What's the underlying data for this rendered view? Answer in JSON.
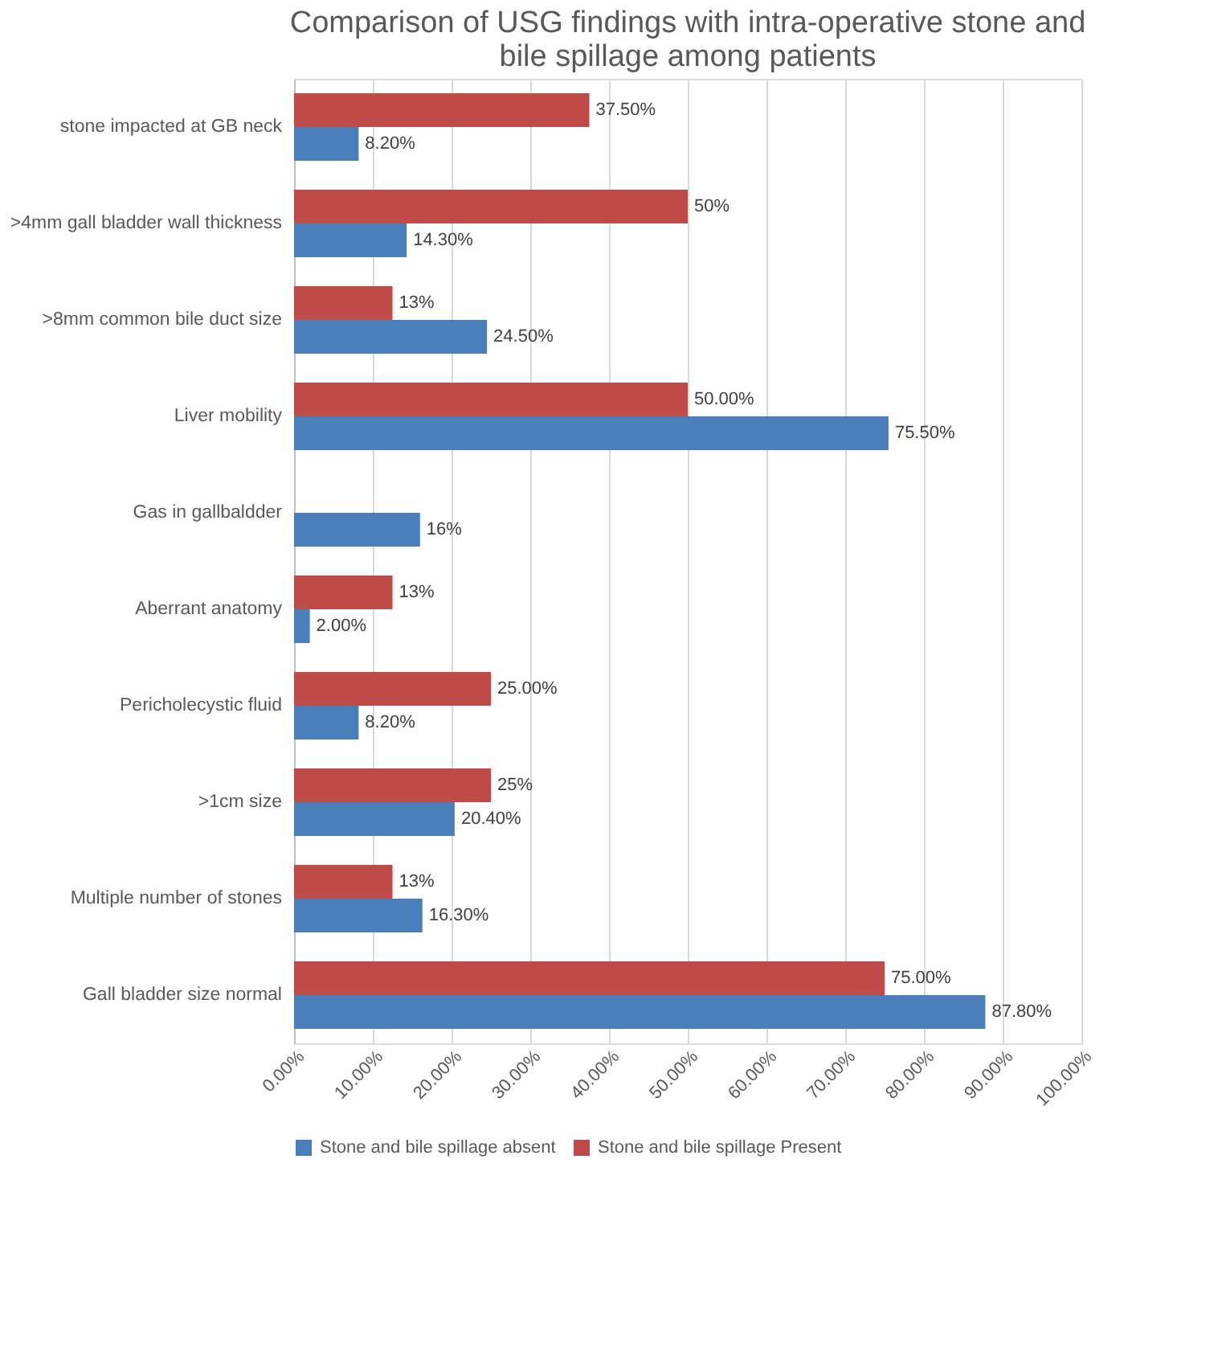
{
  "chart_data": {
    "type": "bar",
    "orientation": "horizontal",
    "title": "Comparison of USG findings with intra-operative stone and bile spillage among patients",
    "categories": [
      "stone impacted at GB neck",
      ">4mm gall bladder wall thickness",
      ">8mm common bile duct size",
      "Liver mobility",
      "Gas in gallbaldder",
      "Aberrant anatomy",
      "Pericholecystic fluid",
      ">1cm size",
      "Multiple number of stones",
      "Gall bladder size normal"
    ],
    "series": [
      {
        "name": "Stone and bile spillage absent",
        "color": "#4a7ebb",
        "values": [
          8.2,
          14.3,
          24.5,
          75.5,
          16,
          2,
          8.2,
          20.4,
          16.3,
          87.8
        ],
        "value_labels": [
          "8.20%",
          "14.30%",
          "24.50%",
          "75.50%",
          "16%",
          "2.00%",
          "8.20%",
          "20.40%",
          "16.30%",
          "87.80%"
        ]
      },
      {
        "name": "Stone and bile spillage Present",
        "color": "#be4b48",
        "values": [
          37.5,
          50,
          12.5,
          50,
          null,
          12.5,
          25,
          25,
          12.5,
          75
        ],
        "value_labels": [
          "37.50%",
          "50%",
          "13%",
          "50.00%",
          null,
          "13%",
          "25.00%",
          "25%",
          "13%",
          "75.00%"
        ]
      }
    ],
    "xlim": [
      0,
      100
    ],
    "xticks": [
      {
        "value": 0,
        "label": "0.00%"
      },
      {
        "value": 10,
        "label": "10.00%"
      },
      {
        "value": 20,
        "label": "20.00%"
      },
      {
        "value": 30,
        "label": "30.00%"
      },
      {
        "value": 40,
        "label": "40.00%"
      },
      {
        "value": 50,
        "label": "50.00%"
      },
      {
        "value": 60,
        "label": "60.00%"
      },
      {
        "value": 70,
        "label": "70.00%"
      },
      {
        "value": 80,
        "label": "80.00%"
      },
      {
        "value": 90,
        "label": "90.00%"
      },
      {
        "value": 100,
        "label": "100.00%"
      }
    ],
    "grid": "x",
    "legend": "bottom"
  }
}
